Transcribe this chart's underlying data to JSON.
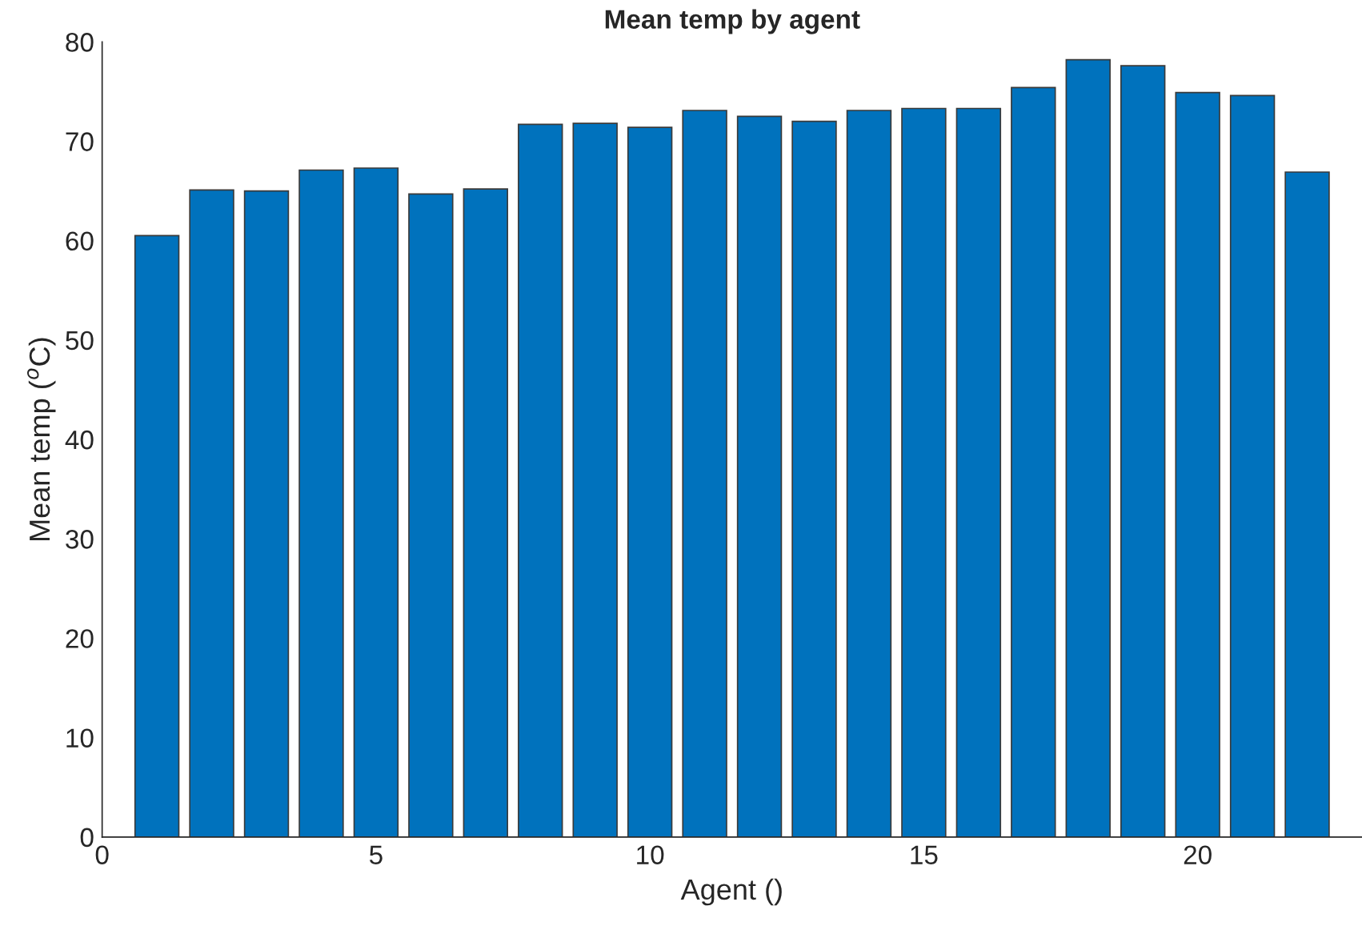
{
  "chart_data": {
    "type": "bar",
    "title": "Mean temp by agent",
    "xlabel": "Agent ()",
    "ylabel": "Mean temp ($^{o}$C)",
    "x": [
      1,
      2,
      3,
      4,
      5,
      6,
      7,
      8,
      9,
      10,
      11,
      12,
      13,
      14,
      15,
      16,
      17,
      18,
      19,
      20,
      21,
      22
    ],
    "values": [
      60.5,
      65.1,
      65.0,
      67.1,
      67.3,
      64.7,
      65.2,
      71.7,
      71.8,
      71.4,
      73.1,
      72.5,
      72.0,
      73.1,
      73.3,
      73.3,
      75.4,
      78.2,
      77.6,
      74.9,
      74.6,
      66.9
    ],
    "color": "#0072bd",
    "xlim": [
      0,
      23
    ],
    "xticks": [
      0,
      5,
      10,
      15,
      20
    ],
    "ylim": [
      0,
      80
    ],
    "yticks": [
      0,
      10,
      20,
      30,
      40,
      50,
      60,
      70,
      80
    ],
    "grid": false,
    "legend": false
  }
}
